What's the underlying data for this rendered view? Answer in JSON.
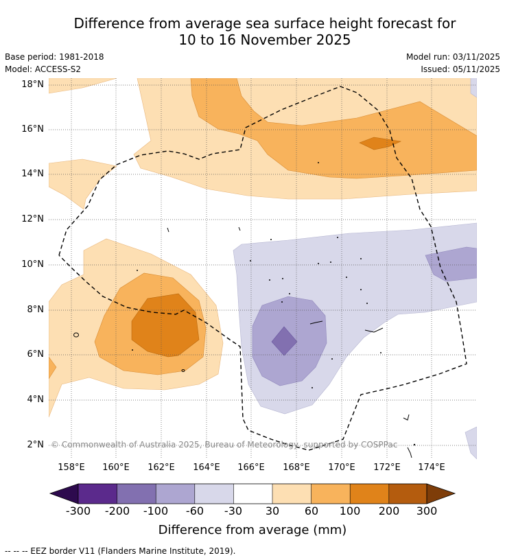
{
  "title": {
    "line1": "Difference from average sea surface height forecast for",
    "line2": "10 to 16 November 2025"
  },
  "meta": {
    "base_period": "Base period: 1981-2018",
    "model": "Model: ACCESS-S2",
    "model_run": "Model run: 03/11/2025",
    "issued": "Issued: 05/11/2025"
  },
  "map": {
    "lat_labels": [
      "18°N",
      "16°N",
      "14°N",
      "12°N",
      "10°N",
      "8°N",
      "6°N",
      "4°N",
      "2°N"
    ],
    "lon_labels": [
      "158°E",
      "160°E",
      "162°E",
      "164°E",
      "166°E",
      "168°E",
      "170°E",
      "172°E",
      "174°E"
    ],
    "copyright": "© Commonwealth of Australia 2025, Bureau of Meteorology, supported by COSPPac"
  },
  "colorbar": {
    "labels": [
      "-300",
      "-200",
      "-100",
      "-60",
      "-30",
      "30",
      "60",
      "100",
      "200",
      "300"
    ],
    "colors": [
      "#2d0a4e",
      "#5b2a8c",
      "#8270b0",
      "#ada6d1",
      "#d8d8ea",
      "#ffffff",
      "#fddfb3",
      "#f8b35c",
      "#e0831a",
      "#b45c0e",
      "#7e3d09"
    ],
    "title": "Difference from average (mm)"
  },
  "footnote": "--  --  -- EEZ border V11 (Flanders Marine Institute, 2019)."
}
